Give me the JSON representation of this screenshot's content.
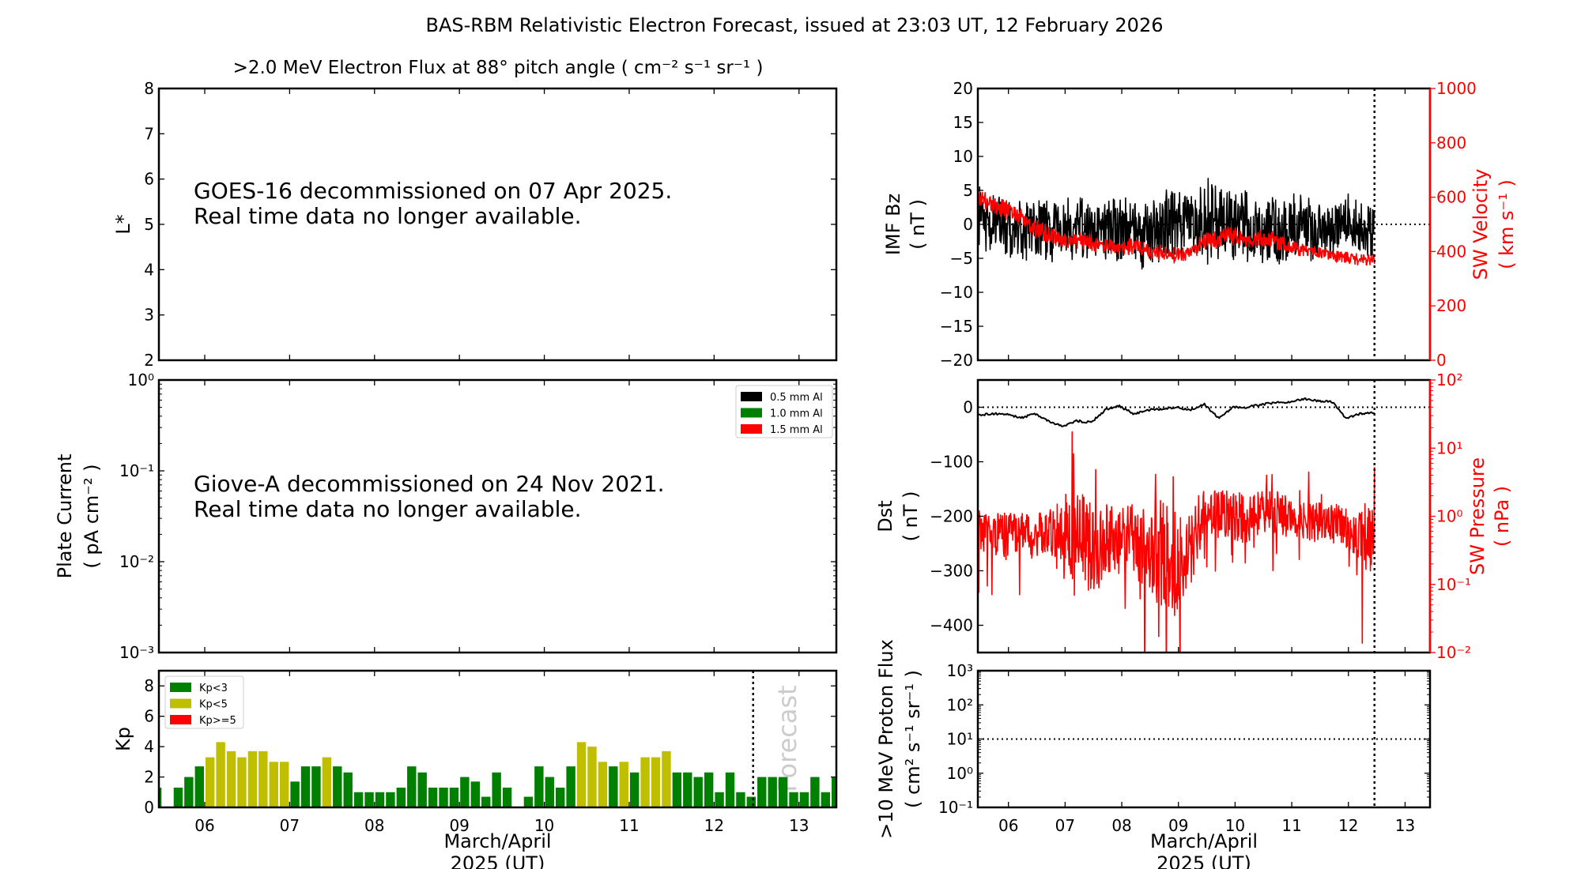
{
  "title": "BAS-RBM Relativistic Electron Forecast, issued at 23:03 UT, 12 February 2026",
  "colors": {
    "kp_low": "#008000",
    "kp_mid": "#bfbf00",
    "kp_high": "#ff0000",
    "secondary_axis": "#ff0000",
    "forecast_text": "#cccccc"
  },
  "xaxis": {
    "range": [
      5.46,
      13.44
    ],
    "ticks": [
      6,
      7,
      8,
      9,
      10,
      11,
      12,
      13
    ],
    "tick_labels": [
      "06",
      "07",
      "08",
      "09",
      "10",
      "11",
      "12",
      "13"
    ],
    "xlabel": [
      "March/April",
      "2025 (UT)"
    ],
    "forecast_x": 12.46
  },
  "chart_data": [
    {
      "id": "flux",
      "type": "heatmap",
      "title": ">2.0 MeV Electron Flux at 88° pitch angle ( cm⁻² s⁻¹ sr⁻¹ )",
      "ylabel": [
        "L*"
      ],
      "ylim": [
        2,
        8
      ],
      "yticks": [
        2,
        3,
        4,
        5,
        6,
        7,
        8
      ],
      "ytick_labels": [
        "2",
        "3",
        "4",
        "5",
        "6",
        "7",
        "8"
      ],
      "message": [
        "GOES-16 decommissioned on 07 Apr 2025.",
        "Real time data no longer available."
      ]
    },
    {
      "id": "plate",
      "type": "line",
      "yscale": "log",
      "ylabel": [
        "Plate Current",
        "( pA cm⁻² )"
      ],
      "ylim": [
        0.001,
        1
      ],
      "yticks": [
        0.001,
        0.01,
        0.1,
        1
      ],
      "ytick_labels": [
        "10⁻³",
        "10⁻²",
        "10⁻¹",
        "10⁰"
      ],
      "legend": [
        {
          "label": "0.5 mm Al",
          "color": "#000000"
        },
        {
          "label": "1.0 mm Al",
          "color": "#008000"
        },
        {
          "label": "1.5 mm Al",
          "color": "#ff0000"
        }
      ],
      "message": [
        "Giove-A decommissioned on 24 Nov 2021.",
        "Real time data no longer available."
      ]
    },
    {
      "id": "kp",
      "type": "bar",
      "ylabel": [
        "Kp"
      ],
      "ylim": [
        0,
        9
      ],
      "yticks": [
        0,
        2,
        4,
        6,
        8
      ],
      "ytick_labels": [
        "0",
        "2",
        "4",
        "6",
        "8"
      ],
      "x_start": 5.4375,
      "x_step": 0.125,
      "values": [
        1.3,
        0,
        1.3,
        2.0,
        2.7,
        3.3,
        4.3,
        3.7,
        3.3,
        3.7,
        3.7,
        3.0,
        3.0,
        1.7,
        2.7,
        2.7,
        3.3,
        2.7,
        2.3,
        1.0,
        1.0,
        1.0,
        1.0,
        1.3,
        2.7,
        2.3,
        1.3,
        1.3,
        1.3,
        2.0,
        1.7,
        0.7,
        2.3,
        1.3,
        0,
        0.7,
        2.7,
        2.0,
        1.3,
        2.7,
        4.3,
        4.0,
        3.0,
        2.7,
        3.0,
        2.3,
        3.3,
        3.3,
        3.7,
        2.3,
        2.3,
        2.0,
        2.3,
        1.0,
        2.3,
        1.0,
        0.7,
        2.0,
        2.0,
        2.0,
        1.0,
        1.0,
        2.0,
        1.0,
        2.0
      ],
      "legend": [
        {
          "label": "Kp<3",
          "color": "#008000"
        },
        {
          "label": "Kp<5",
          "color": "#bfbf00"
        },
        {
          "label": "Kp>=5",
          "color": "#ff0000"
        }
      ],
      "forecast_label": "Forecast"
    },
    {
      "id": "bz_vsw",
      "type": "line",
      "ylabel": [
        "IMF Bz",
        "( nT )"
      ],
      "ylim": [
        -20,
        20
      ],
      "yticks": [
        -20,
        -15,
        -10,
        -5,
        0,
        5,
        10,
        15,
        20
      ],
      "ytick_labels": [
        "−20",
        "−15",
        "−10",
        "−5",
        "0",
        "5",
        "10",
        "15",
        "20"
      ],
      "y2label": [
        "SW Velocity",
        "( km s⁻¹ )"
      ],
      "y2lim": [
        0,
        1000
      ],
      "y2ticks": [
        0,
        200,
        400,
        600,
        800,
        1000
      ],
      "y2tick_labels": [
        "0",
        "200",
        "400",
        "600",
        "800",
        "1000"
      ],
      "series": [
        {
          "name": "IMF Bz",
          "color": "#000000",
          "x_start": 5.46,
          "x_step": 0.25,
          "mean": [
            1,
            0,
            -1,
            -1,
            0,
            -1,
            -1,
            0,
            -1,
            -1,
            0,
            -1,
            -1,
            0,
            0,
            0,
            1,
            0,
            0,
            0,
            -1,
            -1,
            -1,
            0,
            -1,
            -1,
            0,
            -1
          ],
          "spread": [
            5,
            5,
            5,
            5,
            5,
            5,
            5,
            5,
            5,
            5,
            6,
            6,
            6,
            6,
            6,
            6,
            7,
            7,
            6,
            6,
            6,
            6,
            6,
            5,
            5,
            5,
            5,
            5
          ]
        },
        {
          "name": "SW Velocity",
          "color": "#ff0000",
          "x_start": 5.46,
          "x_step": 0.25,
          "mean": [
            590,
            570,
            555,
            530,
            480,
            460,
            450,
            440,
            430,
            420,
            415,
            420,
            400,
            395,
            385,
            395,
            440,
            450,
            460,
            430,
            450,
            440,
            420,
            405,
            395,
            385,
            380,
            370
          ],
          "spread": [
            40,
            40,
            40,
            35,
            40,
            40,
            35,
            35,
            35,
            30,
            30,
            35,
            30,
            30,
            30,
            30,
            35,
            40,
            40,
            35,
            35,
            35,
            30,
            30,
            25,
            25,
            25,
            25
          ]
        }
      ],
      "reference_line": 0
    },
    {
      "id": "dst_p",
      "type": "line",
      "ylabel": [
        "Dst",
        "( nT )"
      ],
      "ylim": [
        -450,
        50
      ],
      "yticks": [
        -400,
        -300,
        -200,
        -100,
        0
      ],
      "ytick_labels": [
        "−400",
        "−300",
        "−200",
        "−100",
        "0"
      ],
      "y2label": [
        "SW Pressure",
        "( nPa )"
      ],
      "y2lim": [
        0.01,
        100
      ],
      "y2scale": "log",
      "y2ticks": [
        0.01,
        0.1,
        1,
        10,
        100
      ],
      "y2tick_labels": [
        "10⁻²",
        "10⁻¹",
        "10⁰",
        "10¹",
        "10²"
      ],
      "series": [
        {
          "name": "Dst",
          "color": "#000000",
          "x_start": 5.46,
          "x_step": 0.25,
          "values": [
            -14,
            -12,
            -12,
            -20,
            -12,
            -25,
            -35,
            -25,
            -28,
            -5,
            2,
            -12,
            -5,
            -3,
            0,
            -5,
            5,
            -20,
            0,
            0,
            5,
            8,
            10,
            15,
            12,
            10,
            -20,
            -12,
            -10,
            0,
            -20,
            -12,
            -5,
            -5,
            2,
            5
          ]
        },
        {
          "name": "SW Pressure",
          "color": "#ff0000",
          "x_start": 5.46,
          "x_step": 0.25,
          "mean": [
            0.6,
            0.6,
            0.5,
            0.6,
            0.5,
            0.6,
            0.7,
            0.5,
            0.3,
            0.4,
            0.5,
            0.5,
            0.25,
            0.3,
            0.2,
            0.3,
            1.0,
            1.2,
            1.0,
            0.9,
            1.2,
            1.1,
            1.0,
            0.9,
            0.8,
            0.8,
            0.7,
            0.5
          ],
          "spread": [
            0.3,
            0.3,
            0.35,
            0.3,
            0.3,
            0.35,
            0.5,
            0.8,
            0.6,
            0.6,
            0.4,
            0.5,
            0.8,
            0.8,
            0.8,
            0.6,
            0.35,
            0.35,
            0.4,
            0.35,
            0.35,
            0.35,
            0.3,
            0.3,
            0.3,
            0.3,
            0.3,
            0.5
          ]
        }
      ],
      "reference_line": 0
    },
    {
      "id": "proton",
      "type": "line",
      "yscale": "log",
      "ylabel": [
        ">10 MeV Proton Flux",
        "( cm² s⁻¹ sr⁻¹ )"
      ],
      "ylim": [
        0.1,
        1000
      ],
      "yticks": [
        0.1,
        1,
        10,
        100,
        1000
      ],
      "ytick_labels": [
        "10⁻¹",
        "10⁰",
        "10¹",
        "10²",
        "10³"
      ],
      "reference_line": 10
    }
  ]
}
